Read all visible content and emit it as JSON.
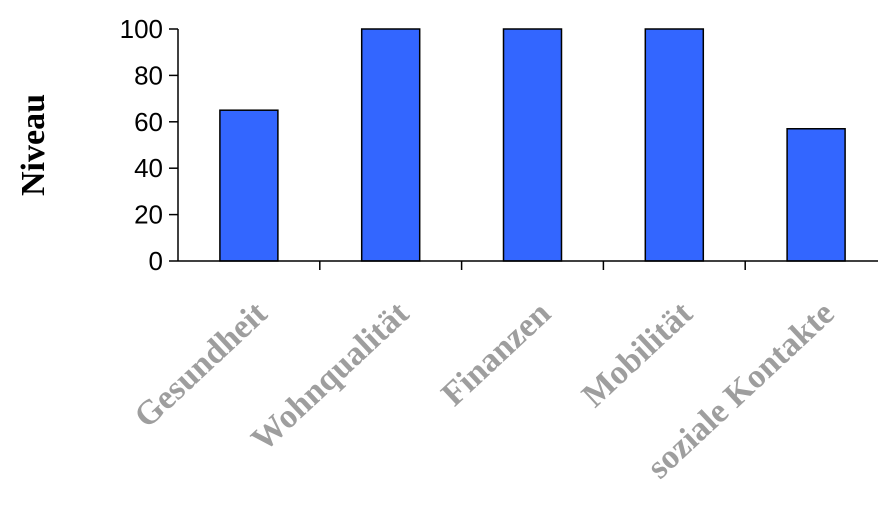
{
  "chart_data": {
    "type": "bar",
    "categories": [
      "Gesundheit",
      "Wohnqualität",
      "Finanzen",
      "Mobilität",
      "soziale Kontakte"
    ],
    "values": [
      65,
      100,
      100,
      100,
      57
    ],
    "title": "",
    "xlabel": "",
    "ylabel": "Niveau",
    "ylim": [
      0,
      100
    ],
    "yticks": [
      0,
      20,
      40,
      60,
      80,
      100
    ],
    "grid": false,
    "legend": "none",
    "bar_color": "#3366ff",
    "bar_edge_color": "#000000",
    "xtick_color": "#9e9e9e"
  }
}
